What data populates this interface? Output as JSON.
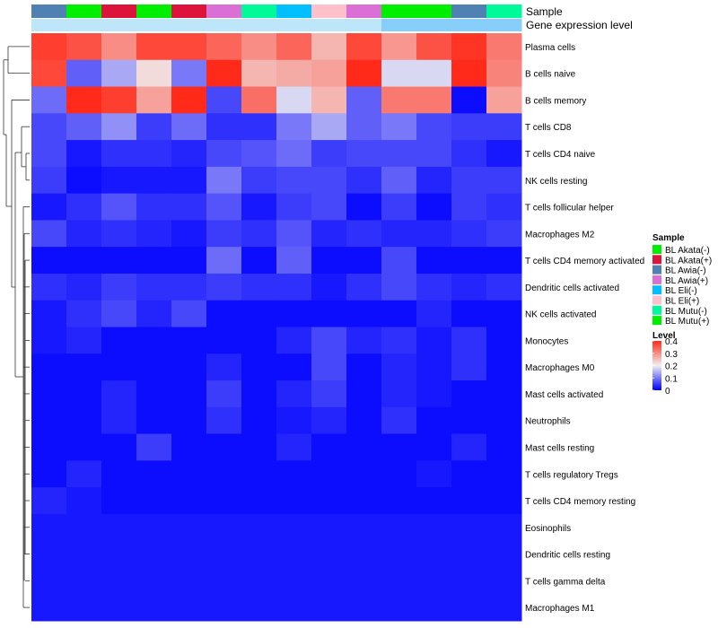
{
  "chart_data": {
    "type": "heatmap",
    "title": "",
    "annotation_rows": [
      {
        "name": "Sample",
        "label": "Sample"
      },
      {
        "name": "gene-expression-level",
        "label": "Gene expression level"
      }
    ],
    "columns": [
      {
        "sample": "BL Awia(-)",
        "sample_color": "#4F81B3",
        "expr_color": "#BDE6F8"
      },
      {
        "sample": "BL Mutu(+)",
        "sample_color": "#00EE00",
        "expr_color": "#BDE6F8"
      },
      {
        "sample": "BL Akata(+)",
        "sample_color": "#DC143C",
        "expr_color": "#BDE6F8"
      },
      {
        "sample": "BL Akata(-)",
        "sample_color": "#00EE00",
        "expr_color": "#BDE6F8"
      },
      {
        "sample": "BL Akata(+)",
        "sample_color": "#DC143C",
        "expr_color": "#BDE6F8"
      },
      {
        "sample": "BL Awia(+)",
        "sample_color": "#DA70D6",
        "expr_color": "#BDE6F8"
      },
      {
        "sample": "BL Mutu(-)",
        "sample_color": "#00FA9A",
        "expr_color": "#BDE6F8"
      },
      {
        "sample": "BL Eli(-)",
        "sample_color": "#00BFFF",
        "expr_color": "#BDE6F8"
      },
      {
        "sample": "BL Eli(+)",
        "sample_color": "#FFC0CB",
        "expr_color": "#BDE6F8"
      },
      {
        "sample": "BL Awia(+)",
        "sample_color": "#DA70D6",
        "expr_color": "#BDE6F8"
      },
      {
        "sample": "BL Akata(-)",
        "sample_color": "#00EE00",
        "expr_color": "#87CEFA"
      },
      {
        "sample": "BL Mutu(+)",
        "sample_color": "#00EE00",
        "expr_color": "#87CEFA"
      },
      {
        "sample": "BL Awia(-)",
        "sample_color": "#4F81B3",
        "expr_color": "#87CEFA"
      },
      {
        "sample": "BL Mutu(-)",
        "sample_color": "#00FA9A",
        "expr_color": "#87CEFA"
      }
    ],
    "rows": [
      "Plasma cells",
      "B cells naive",
      "B cells memory",
      "T cells CD8",
      "T cells CD4 naive",
      "NK cells resting",
      "T cells follicular helper",
      "Macrophages M2",
      "T cells CD4 memory activated",
      "Dendritic cells activated",
      "NK cells activated",
      "Monocytes",
      "Macrophages M0",
      "Mast cells activated",
      "Neutrophils",
      "Mast cells resting",
      "T cells regulatory  Tregs",
      "T cells CD4 memory resting",
      "Eosinophils",
      "Dendritic cells resting",
      "T cells gamma delta",
      "Macrophages M1"
    ],
    "values": [
      [
        0.38,
        0.36,
        0.3,
        0.37,
        0.37,
        0.34,
        0.3,
        0.34,
        0.26,
        0.37,
        0.29,
        0.36,
        0.39,
        0.32
      ],
      [
        0.37,
        0.08,
        0.14,
        0.22,
        0.1,
        0.4,
        0.26,
        0.27,
        0.28,
        0.4,
        0.18,
        0.18,
        0.4,
        0.31
      ],
      [
        0.09,
        0.4,
        0.38,
        0.28,
        0.4,
        0.06,
        0.33,
        0.18,
        0.26,
        0.08,
        0.32,
        0.32,
        0.01,
        0.28
      ],
      [
        0.06,
        0.08,
        0.12,
        0.05,
        0.09,
        0.04,
        0.04,
        0.1,
        0.14,
        0.08,
        0.1,
        0.06,
        0.05,
        0.05
      ],
      [
        0.06,
        0.02,
        0.04,
        0.04,
        0.03,
        0.06,
        0.07,
        0.09,
        0.05,
        0.06,
        0.06,
        0.06,
        0.04,
        0.02
      ],
      [
        0.05,
        0.01,
        0.02,
        0.02,
        0.02,
        0.1,
        0.05,
        0.06,
        0.06,
        0.04,
        0.08,
        0.03,
        0.05,
        0.05
      ],
      [
        0.02,
        0.04,
        0.07,
        0.04,
        0.04,
        0.07,
        0.02,
        0.05,
        0.06,
        0.01,
        0.05,
        0.01,
        0.05,
        0.04
      ],
      [
        0.06,
        0.03,
        0.04,
        0.03,
        0.02,
        0.05,
        0.04,
        0.07,
        0.03,
        0.04,
        0.03,
        0.03,
        0.04,
        0.05
      ],
      [
        0.01,
        0.01,
        0.01,
        0.01,
        0.01,
        0.09,
        0.01,
        0.08,
        0.01,
        0.01,
        0.06,
        0.01,
        0.01,
        0.01
      ],
      [
        0.04,
        0.03,
        0.05,
        0.04,
        0.04,
        0.05,
        0.04,
        0.04,
        0.02,
        0.04,
        0.06,
        0.04,
        0.03,
        0.04
      ],
      [
        0.02,
        0.04,
        0.06,
        0.03,
        0.06,
        0.01,
        0.01,
        0.01,
        0.01,
        0.01,
        0.01,
        0.03,
        0.01,
        0.01
      ],
      [
        0.02,
        0.03,
        0.01,
        0.01,
        0.01,
        0.01,
        0.01,
        0.03,
        0.06,
        0.03,
        0.04,
        0.02,
        0.04,
        0.01
      ],
      [
        0.01,
        0.01,
        0.01,
        0.01,
        0.01,
        0.03,
        0.01,
        0.01,
        0.06,
        0.01,
        0.03,
        0.02,
        0.04,
        0.01
      ],
      [
        0.01,
        0.01,
        0.03,
        0.01,
        0.01,
        0.05,
        0.01,
        0.03,
        0.05,
        0.01,
        0.03,
        0.02,
        0.01,
        0.01
      ],
      [
        0.01,
        0.01,
        0.03,
        0.01,
        0.01,
        0.04,
        0.01,
        0.02,
        0.03,
        0.01,
        0.04,
        0.01,
        0.01,
        0.01
      ],
      [
        0.01,
        0.01,
        0.01,
        0.05,
        0.01,
        0.01,
        0.01,
        0.03,
        0.01,
        0.01,
        0.01,
        0.01,
        0.03,
        0.01
      ],
      [
        0.01,
        0.03,
        0.01,
        0.01,
        0.01,
        0.01,
        0.01,
        0.01,
        0.01,
        0.01,
        0.01,
        0.02,
        0.01,
        0.01
      ],
      [
        0.03,
        0.02,
        0.01,
        0.01,
        0.01,
        0.01,
        0.01,
        0.01,
        0.01,
        0.01,
        0.01,
        0.01,
        0.01,
        0.01
      ],
      [
        0.02,
        0.02,
        0.02,
        0.02,
        0.02,
        0.02,
        0.02,
        0.02,
        0.02,
        0.02,
        0.02,
        0.02,
        0.02,
        0.02
      ],
      [
        0.02,
        0.02,
        0.02,
        0.02,
        0.02,
        0.02,
        0.02,
        0.02,
        0.02,
        0.02,
        0.02,
        0.02,
        0.02,
        0.02
      ],
      [
        0.02,
        0.02,
        0.02,
        0.02,
        0.02,
        0.02,
        0.02,
        0.02,
        0.02,
        0.02,
        0.02,
        0.02,
        0.02,
        0.02
      ],
      [
        0.02,
        0.02,
        0.02,
        0.02,
        0.02,
        0.02,
        0.02,
        0.02,
        0.02,
        0.02,
        0.02,
        0.02,
        0.02,
        0.02
      ]
    ],
    "color_scale": {
      "title": "Level",
      "stops": [
        {
          "value": 0,
          "color": "#0000FF"
        },
        {
          "value": 0.2,
          "color": "#F0F0F0"
        },
        {
          "value": 0.4,
          "color": "#FF2A1A"
        }
      ],
      "ticks": [
        "0.4",
        "0.3",
        "0.2",
        "0.1",
        "0"
      ],
      "range": [
        0,
        0.4
      ]
    },
    "legend": {
      "title": "Sample",
      "placement": "right",
      "entries": [
        {
          "label": "BL Akata(-)",
          "color": "#00EE00"
        },
        {
          "label": "BL Akata(+)",
          "color": "#DC143C"
        },
        {
          "label": "BL Awia(-)",
          "color": "#4F81B3"
        },
        {
          "label": "BL Awia(+)",
          "color": "#DA70D6"
        },
        {
          "label": "BL Eli(-)",
          "color": "#00BFFF"
        },
        {
          "label": "BL Eli(+)",
          "color": "#FFC0CB"
        },
        {
          "label": "BL Mutu(-)",
          "color": "#00FA9A"
        },
        {
          "label": "BL Mutu(+)",
          "color": "#00EE00"
        }
      ]
    },
    "row_dendrogram": true
  }
}
